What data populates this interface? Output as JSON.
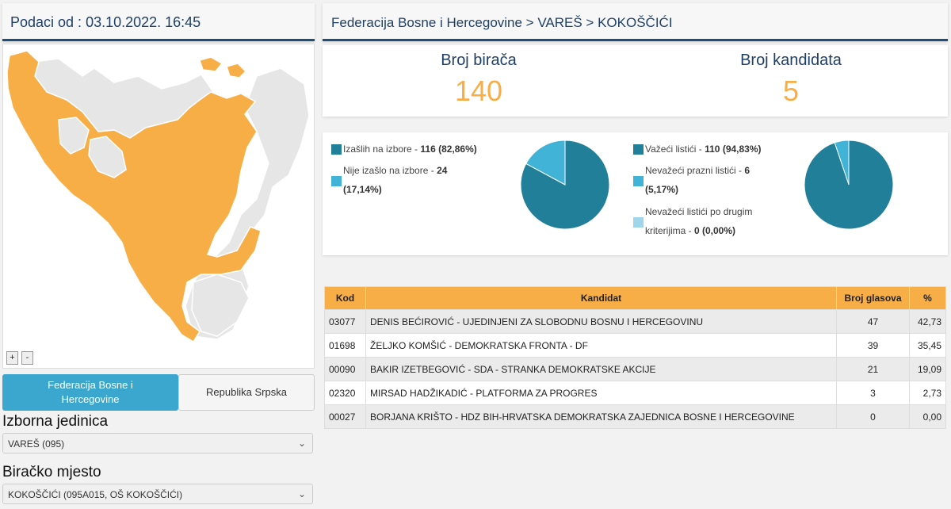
{
  "header": {
    "date": "Podaci od : 03.10.2022. 16:45"
  },
  "map": {
    "zoom_in": "+",
    "zoom_out": "-",
    "colors": {
      "highlight": "#f8ae47",
      "other": "#e6e6e6",
      "border": "#ffffff"
    }
  },
  "entity_tabs": [
    {
      "label": "Federacija Bosne i Hercegovine",
      "active": true
    },
    {
      "label": "Republika Srpska",
      "active": false
    }
  ],
  "izborna_jedinica": {
    "label": "Izborna jedinica",
    "value": "VAREŠ (095)"
  },
  "biracko_mjesto": {
    "label": "Biračko mjesto",
    "value": "KOKOŠČIĆI (095A015, OŠ KOKOŠČIĆI)"
  },
  "breadcrumb": "Federacija Bosne i Hercegovine > VAREŠ > KOKOŠČIĆI",
  "counts": {
    "voters_label": "Broj birača",
    "voters_value": "140",
    "candidates_label": "Broj kandidata",
    "candidates_value": "5"
  },
  "turnout": {
    "items": [
      {
        "label": "Izašlih na izbore - ",
        "value": "116 (82,86%)",
        "color": "#227f99",
        "fraction": 0.8286
      },
      {
        "label": "Nije izašlo na izbore - ",
        "value": "24 (17,14%)",
        "color": "#40b3d7",
        "fraction": 0.1714
      }
    ]
  },
  "ballots": {
    "items": [
      {
        "label": "Važeći listići - ",
        "value": "110 (94,83%)",
        "color": "#227f99",
        "fraction": 0.9483
      },
      {
        "label": "Nevažeći prazni listići - ",
        "value": "6 (5,17%)",
        "color": "#40b3d7",
        "fraction": 0.0517
      },
      {
        "label": "Nevažeći listići po drugim kriterijima - ",
        "value": "0 (0,00%)",
        "color": "#9fd6ec",
        "fraction": 0.0
      }
    ]
  },
  "table": {
    "headers": [
      "Kod",
      "Kandidat",
      "Broj glasova",
      "%"
    ],
    "rows": [
      [
        "03077",
        "DENIS BEĆIROVIĆ - UJEDINJENI ZA SLOBODNU BOSNU I HERCEGOVINU",
        "47",
        "42,73"
      ],
      [
        "01698",
        "ŽELJKO KOMŠIĆ - DEMOKRATSKA FRONTA - DF",
        "39",
        "35,45"
      ],
      [
        "00090",
        "BAKIR IZETBEGOVIĆ - SDA - STRANKA DEMOKRATSKE AKCIJE",
        "21",
        "19,09"
      ],
      [
        "02320",
        "MIRSAD HADŽIKADIĆ - PLATFORMA ZA PROGRES",
        "3",
        "2,73"
      ],
      [
        "00027",
        "BORJANA KRIŠTO - HDZ BIH-HRVATSKA DEMOKRATSKA ZAJEDNICA BOSNE I HERCEGOVINE",
        "0",
        "0,00"
      ]
    ]
  }
}
